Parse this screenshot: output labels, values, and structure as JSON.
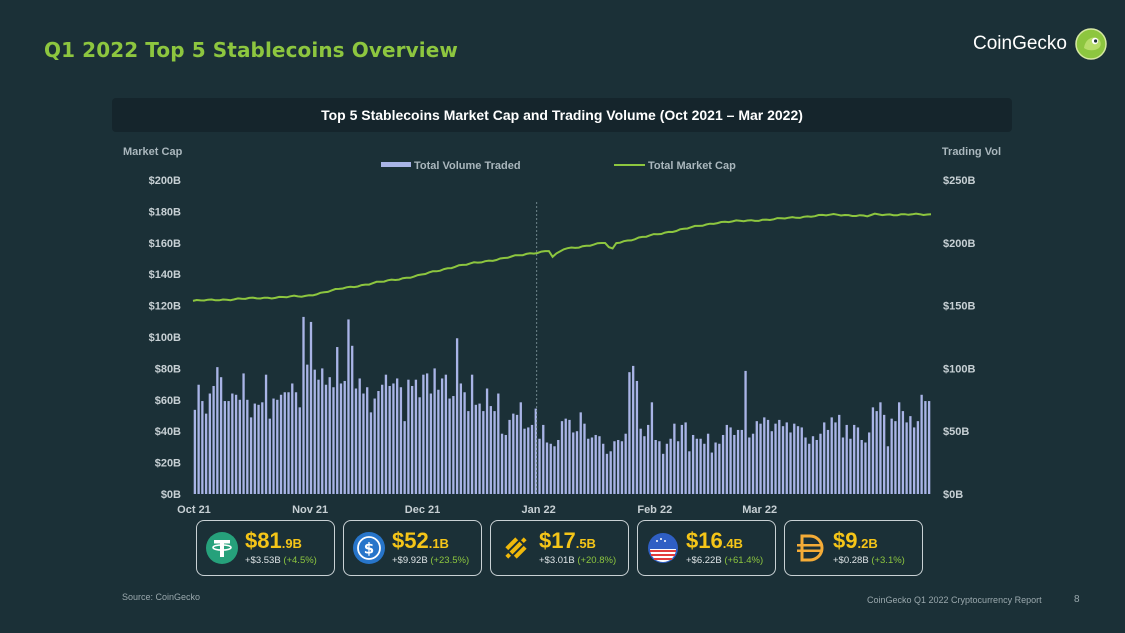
{
  "header": {
    "title": "Q1 2022 Top 5 Stablecoins Overview",
    "brand": "CoinGecko"
  },
  "chart_data": {
    "type": "bar+line",
    "title": "Top 5 Stablecoins Market Cap and Trading Volume (Oct 2021 – Mar 2022)",
    "left_axis_label": "Market Cap",
    "right_axis_label": "Trading Vol",
    "left_ticks": [
      "$0B",
      "$20B",
      "$40B",
      "$60B",
      "$80B",
      "$100B",
      "$120B",
      "$140B",
      "$160B",
      "$180B",
      "$200B"
    ],
    "right_ticks": [
      "$0B",
      "$50B",
      "$100B",
      "$150B",
      "$200B",
      "$250B"
    ],
    "left_ylim": [
      0,
      200
    ],
    "right_ylim": [
      0,
      250
    ],
    "x_labels": [
      "Oct 21",
      "Nov 21",
      "Dec 21",
      "Jan 22",
      "Feb 22",
      "Mar 22"
    ],
    "x_label_positions": [
      0,
      31,
      61,
      92,
      123,
      151
    ],
    "legend": [
      "Total Volume Traded",
      "Total Market Cap"
    ],
    "colors": {
      "volume": "#a9b4e6",
      "market_cap": "#8dc63f",
      "divider": "#6f858b"
    },
    "divider_day": 92,
    "market_cap_keypoints": [
      [
        0,
        123
      ],
      [
        10,
        124
      ],
      [
        20,
        125
      ],
      [
        30,
        126
      ],
      [
        40,
        131
      ],
      [
        50,
        135
      ],
      [
        60,
        139
      ],
      [
        70,
        145
      ],
      [
        80,
        149
      ],
      [
        92,
        154
      ],
      [
        95,
        155
      ],
      [
        96,
        151
      ],
      [
        99,
        156
      ],
      [
        110,
        160
      ],
      [
        111,
        157
      ],
      [
        112,
        156
      ],
      [
        113,
        160
      ],
      [
        125,
        166
      ],
      [
        140,
        173
      ],
      [
        155,
        175
      ],
      [
        165,
        177
      ],
      [
        172,
        178
      ],
      [
        180,
        177
      ],
      [
        182,
        178
      ]
    ],
    "volume_daily": [
      67,
      87,
      74,
      64,
      80,
      86,
      101,
      93,
      74,
      74,
      80,
      79,
      75,
      96,
      75,
      61,
      72,
      71,
      73,
      95,
      60,
      76,
      75,
      79,
      81,
      81,
      88,
      81,
      69,
      141,
      103,
      137,
      99,
      91,
      100,
      87,
      93,
      85,
      117,
      88,
      90,
      139,
      118,
      84,
      92,
      80,
      85,
      65,
      76,
      82,
      87,
      95,
      86,
      88,
      92,
      85,
      58,
      91,
      86,
      91,
      77,
      95,
      96,
      80,
      100,
      83,
      92,
      95,
      76,
      78,
      124,
      88,
      81,
      66,
      95,
      71,
      72,
      66,
      84,
      70,
      66,
      80,
      48,
      47,
      59,
      64,
      63,
      73,
      52,
      53,
      55,
      68,
      44,
      55,
      41,
      40,
      38,
      43,
      58,
      60,
      59,
      49,
      50,
      65,
      56,
      44,
      45,
      47,
      46,
      40,
      32,
      34,
      42,
      43,
      42,
      48,
      97,
      102,
      90,
      52,
      46,
      55,
      73,
      43,
      42,
      32,
      40,
      44,
      56,
      42,
      55,
      57,
      34,
      47,
      44,
      44,
      40,
      48,
      33,
      41,
      40,
      47,
      55,
      53,
      47,
      51,
      51,
      98,
      45,
      48,
      58,
      56,
      61,
      59,
      50,
      56,
      59,
      54,
      57,
      49,
      56,
      54,
      53,
      45,
      40,
      46,
      43,
      48,
      57,
      51,
      61,
      57,
      63,
      45,
      55,
      44,
      55,
      53,
      43,
      41,
      49,
      69,
      66,
      73,
      63,
      38,
      60,
      58,
      73,
      66,
      57,
      62,
      53,
      58,
      79,
      74,
      74
    ]
  },
  "coins": [
    {
      "name": "usdt-icon",
      "value_main": "$81",
      "value_dec": ".9B",
      "change_abs": "+$3.53B",
      "change_pct": "(+4.5%)"
    },
    {
      "name": "usdc-icon",
      "value_main": "$52",
      "value_dec": ".1B",
      "change_abs": "+$9.92B",
      "change_pct": "(+23.5%)"
    },
    {
      "name": "busd-icon",
      "value_main": "$17",
      "value_dec": ".5B",
      "change_abs": "+$3.01B",
      "change_pct": "(+20.8%)"
    },
    {
      "name": "ust-icon",
      "value_main": "$16",
      "value_dec": ".4B",
      "change_abs": "+$6.22B",
      "change_pct": "(+61.4%)"
    },
    {
      "name": "dai-icon",
      "value_main": "$9",
      "value_dec": ".2B",
      "change_abs": "+$0.28B",
      "change_pct": "(+3.1%)"
    }
  ],
  "footer": {
    "source": "Source: CoinGecko",
    "report": "CoinGecko Q1 2022 Cryptocurrency Report",
    "page": "8"
  }
}
